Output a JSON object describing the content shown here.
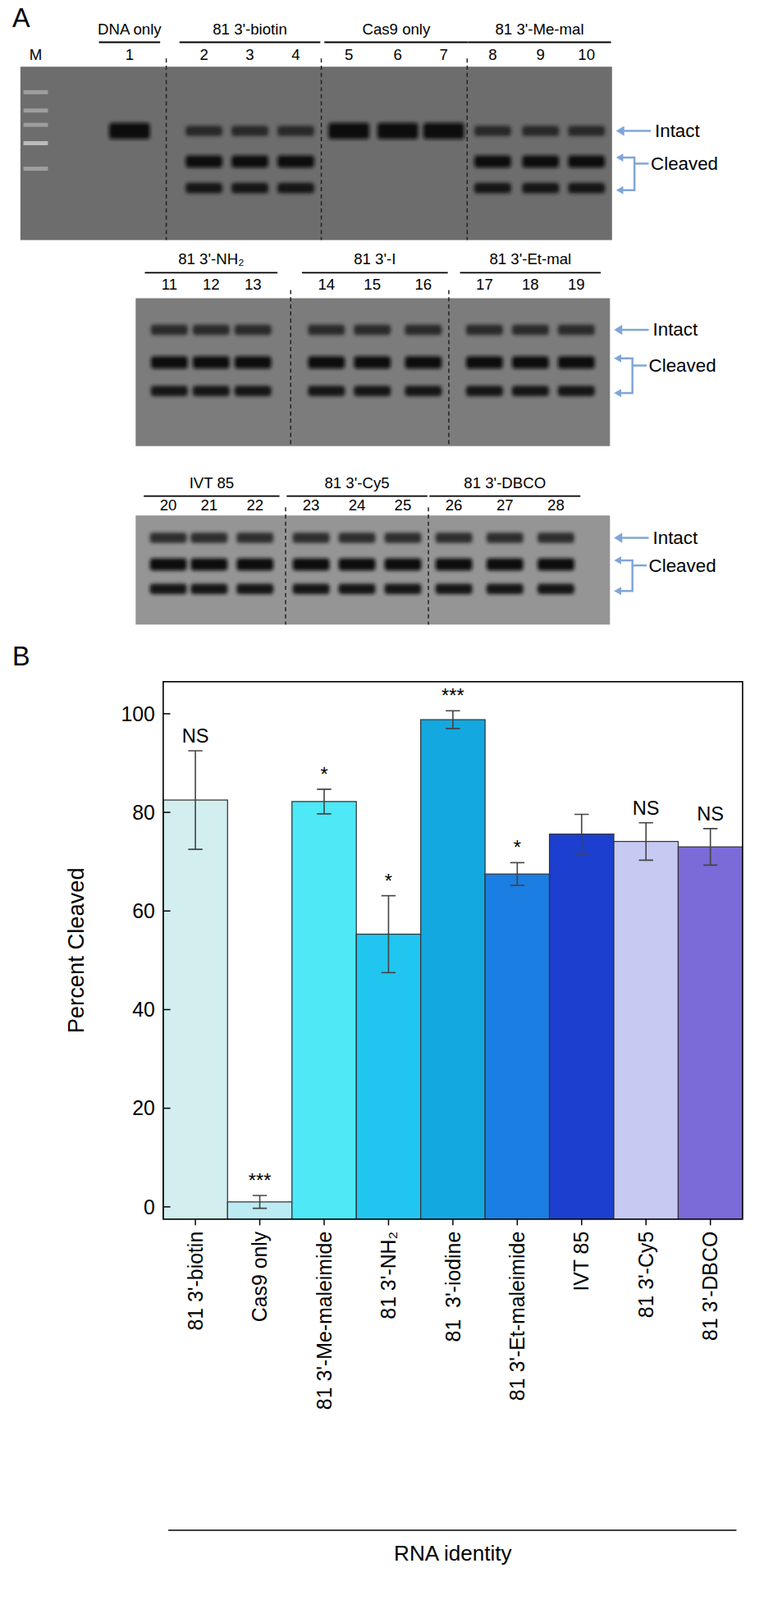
{
  "panel_a": {
    "label": "A",
    "marker": "M",
    "intact_label": "Intact",
    "cleaved_label": "Cleaved",
    "rows": [
      {
        "groups": [
          {
            "title": "DNA only",
            "lanes": [
              1
            ]
          },
          {
            "title": "81 3'-biotin",
            "lanes": [
              2,
              3,
              4
            ]
          },
          {
            "title": "Cas9 only",
            "lanes": [
              5,
              6,
              7
            ]
          },
          {
            "title": "81 3'-Me-mal",
            "lanes": [
              8,
              9,
              10
            ]
          }
        ]
      },
      {
        "groups": [
          {
            "title": "81 3'-NH₂",
            "lanes": [
              11,
              12,
              13
            ]
          },
          {
            "title": "81 3'-I",
            "lanes": [
              14,
              15,
              16
            ]
          },
          {
            "title": "81 3'-Et-mal",
            "lanes": [
              17,
              18,
              19
            ]
          }
        ]
      },
      {
        "groups": [
          {
            "title": "IVT 85",
            "lanes": [
              20,
              21,
              22
            ]
          },
          {
            "title": "81 3'-Cy5",
            "lanes": [
              23,
              24,
              25
            ]
          },
          {
            "title": "81 3'-DBCO",
            "lanes": [
              26,
              27,
              28
            ]
          }
        ]
      }
    ]
  },
  "panel_b_label": "B",
  "chart_data": {
    "type": "bar",
    "x_label": "RNA identity",
    "y_label": "Percent Cleaved",
    "categories": [
      "81 3'-biotin",
      "Cas9 only",
      "81 3'-Me-maleimide",
      "81 3'-NH₂",
      "81  3'-iodine",
      "81 3'-Et-maleimide",
      "IVT 85",
      "81 3'-Cy5",
      "81 3'-DBCO"
    ],
    "values": [
      82.5,
      1.0,
      82.2,
      55.3,
      98.8,
      67.5,
      75.6,
      74.1,
      73.0
    ],
    "errors": [
      10.0,
      1.3,
      2.5,
      7.8,
      1.8,
      2.3,
      4.0,
      3.8,
      3.7
    ],
    "significance": [
      "NS",
      "***",
      "*",
      "*",
      "***",
      "*",
      null,
      "NS",
      "NS"
    ],
    "colors": [
      "#d2eeee",
      "#bdebf3",
      "#4ee8f6",
      "#20c6f0",
      "#13a9e0",
      "#1a7ee2",
      "#1c3fcf",
      "#c6caf3",
      "#7b6bd9"
    ],
    "ylim": [
      -2.5,
      106.5
    ],
    "yticks": [
      0,
      20,
      40,
      60,
      80,
      100
    ],
    "grid": false
  }
}
